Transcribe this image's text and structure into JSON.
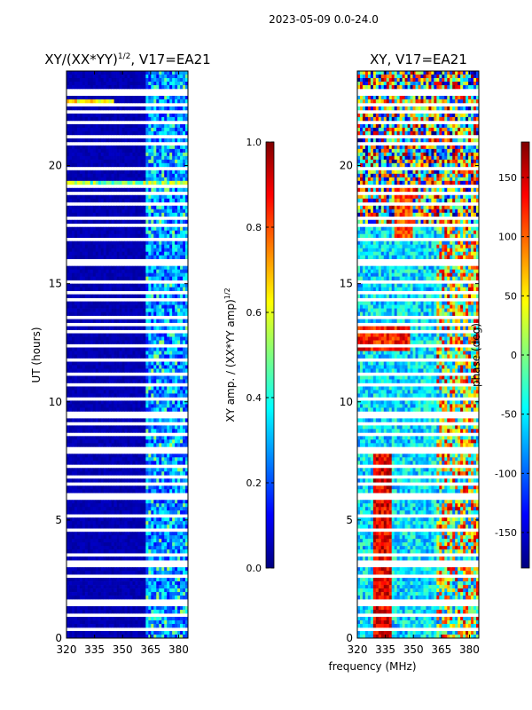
{
  "suptitle": "2023-05-09 0.0-24.0",
  "colormap_stops": [
    "#00007f",
    "#0000ff",
    "#007fff",
    "#00ffff",
    "#7fff7f",
    "#ffff00",
    "#ff7f00",
    "#ff0000",
    "#7f0000"
  ],
  "chart_data": [
    {
      "type": "heatmap",
      "title": "XY/(XX*YY)",
      "title_exponent": "1/2",
      "title_suffix": ", V17=EA21",
      "xlabel": "",
      "ylabel": "UT (hours)",
      "xlim": [
        320,
        385
      ],
      "ylim": [
        0,
        24
      ],
      "xticks": [
        320,
        335,
        350,
        365,
        380
      ],
      "yticks": [
        0,
        5,
        10,
        15,
        20
      ],
      "colorbar": {
        "label": "XY amp. / (XX*YY amp)",
        "label_exponent": "1/2",
        "range": [
          0.0,
          1.0
        ],
        "ticks": [
          "0.0",
          "0.2",
          "0.4",
          "0.6",
          "0.8",
          "1.0"
        ]
      }
    },
    {
      "type": "heatmap",
      "title": "XY, V17=EA21",
      "xlabel": "frequency (MHz)",
      "ylabel": "",
      "xlim": [
        320,
        385
      ],
      "ylim": [
        0,
        24
      ],
      "xticks": [
        320,
        335,
        350,
        365,
        380
      ],
      "yticks": [
        0,
        5,
        10,
        15,
        20
      ],
      "colorbar": {
        "label": "phase (deg)",
        "range": [
          -180,
          180
        ],
        "ticks": [
          "-150",
          "-100",
          "-50",
          "0",
          "50",
          "100",
          "150"
        ]
      }
    }
  ]
}
